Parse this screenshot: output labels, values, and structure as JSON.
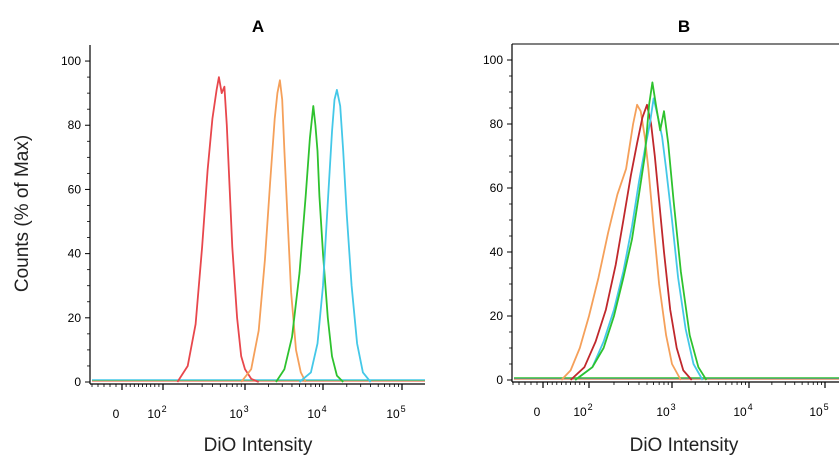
{
  "chart_data": [
    {
      "type": "line",
      "title": "A",
      "xlabel": "DiO Intensity",
      "ylabel": "Counts (% of Max)",
      "x_scale": "biexponential",
      "x_ticks": [
        {
          "value": 0,
          "base": "0",
          "exp": ""
        },
        {
          "value": 100,
          "base": "10",
          "exp": "2"
        },
        {
          "value": 1000,
          "base": "10",
          "exp": "3"
        },
        {
          "value": 10000,
          "base": "10",
          "exp": "4"
        },
        {
          "value": 100000,
          "base": "10",
          "exp": "5"
        }
      ],
      "y_ticks": [
        0,
        20,
        40,
        60,
        80,
        100
      ],
      "ylim": [
        0,
        105
      ],
      "series": [
        {
          "color": "#e8474c",
          "x": [
            150,
            200,
            250,
            300,
            350,
            400,
            450,
            480,
            520,
            560,
            600,
            650,
            700,
            800,
            900,
            1000,
            1200,
            1500
          ],
          "y": [
            0,
            5,
            18,
            42,
            66,
            82,
            91,
            95,
            90,
            92,
            80,
            60,
            42,
            20,
            8,
            4,
            1,
            0
          ]
        },
        {
          "color": "#f5a05a",
          "x": [
            900,
            1200,
            1500,
            1800,
            2100,
            2400,
            2600,
            2800,
            3000,
            3200,
            3500,
            3900,
            4500,
            5200,
            6000
          ],
          "y": [
            0,
            4,
            16,
            38,
            62,
            82,
            90,
            94,
            88,
            72,
            52,
            28,
            10,
            3,
            0
          ]
        },
        {
          "color": "#2ec22e",
          "x": [
            2500,
            3200,
            4000,
            5000,
            6000,
            6800,
            7500,
            8000,
            8500,
            9000,
            10000,
            11500,
            13000,
            15000,
            18000
          ],
          "y": [
            0,
            4,
            14,
            34,
            58,
            76,
            86,
            80,
            72,
            58,
            40,
            20,
            8,
            2,
            0
          ]
        },
        {
          "color": "#44c8e8",
          "x": [
            5000,
            7000,
            8500,
            10000,
            11500,
            13000,
            14000,
            15000,
            16500,
            18000,
            20000,
            23000,
            27000,
            32000,
            40000
          ],
          "y": [
            0,
            3,
            12,
            30,
            56,
            78,
            88,
            91,
            86,
            72,
            52,
            30,
            12,
            3,
            0
          ]
        }
      ]
    },
    {
      "type": "line",
      "title": "B",
      "xlabel": "DiO Intensity",
      "ylabel": "",
      "x_scale": "biexponential",
      "x_ticks": [
        {
          "value": 0,
          "base": "0",
          "exp": ""
        },
        {
          "value": 100,
          "base": "10",
          "exp": "2"
        },
        {
          "value": 1000,
          "base": "10",
          "exp": "3"
        },
        {
          "value": 10000,
          "base": "10",
          "exp": "4"
        },
        {
          "value": 100000,
          "base": "10",
          "exp": "5"
        }
      ],
      "y_ticks": [
        0,
        20,
        40,
        60,
        80,
        100
      ],
      "ylim": [
        0,
        105
      ],
      "series": [
        {
          "color": "#f5a05a",
          "x": [
            40,
            60,
            80,
            100,
            130,
            170,
            220,
            280,
            340,
            380,
            420,
            470,
            520,
            600,
            700,
            850,
            1000,
            1300
          ],
          "y": [
            0,
            3,
            10,
            20,
            32,
            46,
            58,
            66,
            80,
            86,
            84,
            76,
            66,
            48,
            30,
            14,
            5,
            0
          ]
        },
        {
          "color": "#c0282c",
          "x": [
            60,
            90,
            120,
            160,
            210,
            260,
            320,
            380,
            440,
            500,
            560,
            620,
            700,
            800,
            950,
            1150,
            1400,
            1800
          ],
          "y": [
            0,
            4,
            12,
            22,
            36,
            50,
            64,
            74,
            82,
            86,
            80,
            70,
            56,
            40,
            22,
            10,
            3,
            0
          ]
        },
        {
          "color": "#44c8e8",
          "x": [
            70,
            110,
            150,
            200,
            260,
            330,
            400,
            470,
            540,
            600,
            680,
            760,
            850,
            1000,
            1200,
            1500,
            1900,
            2500
          ],
          "y": [
            0,
            4,
            12,
            22,
            34,
            48,
            62,
            72,
            80,
            88,
            82,
            76,
            66,
            50,
            32,
            16,
            5,
            0
          ]
        },
        {
          "color": "#2ec22e",
          "x": [
            70,
            110,
            150,
            200,
            260,
            330,
            400,
            470,
            530,
            580,
            640,
            720,
            800,
            900,
            1050,
            1300,
            1700,
            2200,
            2800
          ],
          "y": [
            0,
            4,
            10,
            20,
            32,
            44,
            58,
            70,
            86,
            93,
            86,
            78,
            84,
            74,
            56,
            34,
            14,
            4,
            0
          ]
        }
      ]
    }
  ]
}
